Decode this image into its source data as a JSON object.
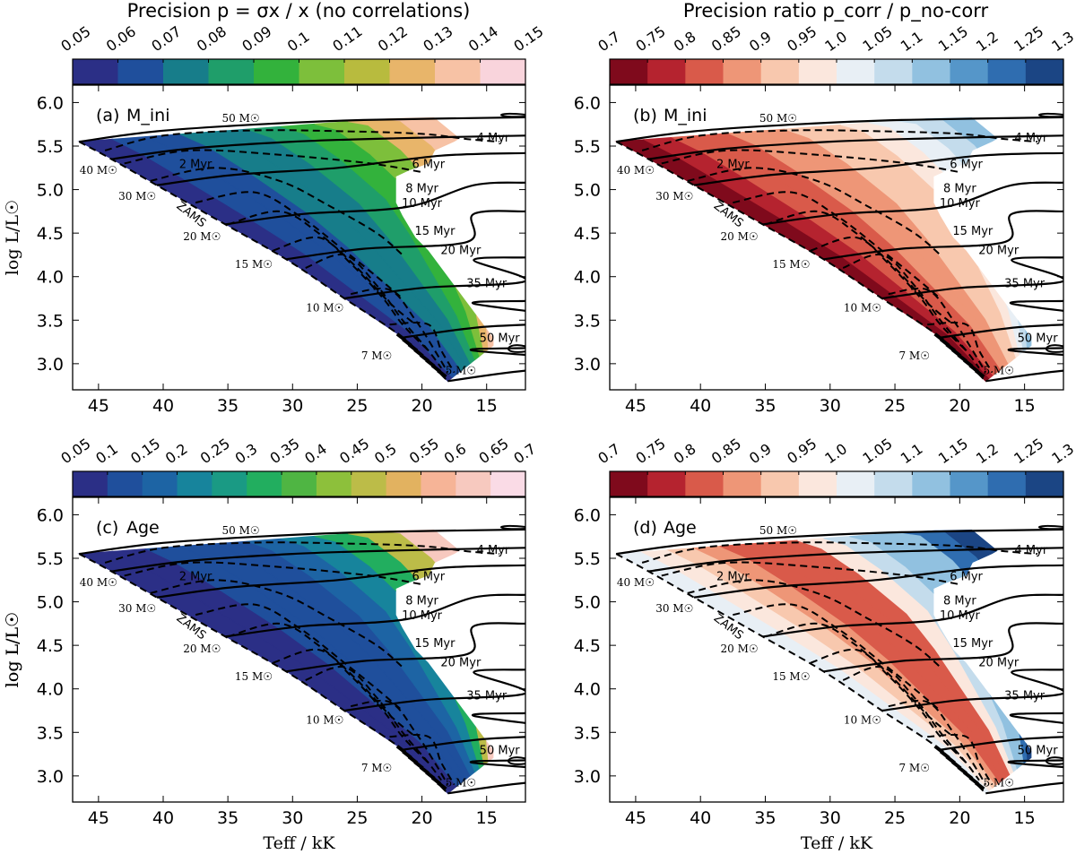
{
  "chart_data": [
    {
      "type": "heatmap",
      "panel_label": "(a)",
      "quantity": "M_ini",
      "colorbar_title": "Precision p = σx / x (no correlations)",
      "colorbar_ticks": [
        "0.05",
        "0.06",
        "0.07",
        "0.08",
        "0.09",
        "0.1",
        "0.11",
        "0.12",
        "0.13",
        "0.14",
        "0.15"
      ],
      "colorbar_colors": [
        "#2b2f86",
        "#1f4f9c",
        "#177d8a",
        "#1f9e6a",
        "#33b23c",
        "#7dbf3b",
        "#b8bb3e",
        "#e8b56a",
        "#f7c2a5",
        "#f9d4dc"
      ],
      "region_levels": [
        0.058,
        0.062,
        0.066,
        0.072,
        0.078,
        0.085,
        0.095,
        0.108,
        0.122,
        0.136
      ],
      "ylabel": "log L/L☉",
      "xlabel": "",
      "xlim": [
        47,
        12
      ],
      "ylim": [
        2.7,
        6.2
      ],
      "xticks": [
        "45",
        "40",
        "35",
        "30",
        "25",
        "20",
        "15"
      ],
      "yticks": [
        "3.0",
        "3.5",
        "4.0",
        "4.5",
        "5.0",
        "5.5",
        "6.0"
      ]
    },
    {
      "type": "heatmap",
      "panel_label": "(b)",
      "quantity": "M_ini",
      "colorbar_title": "Precision ratio p_corr / p_no-corr",
      "colorbar_ticks": [
        "0.7",
        "0.75",
        "0.8",
        "0.85",
        "0.9",
        "0.95",
        "1.0",
        "1.05",
        "1.1",
        "1.15",
        "1.2",
        "1.25",
        "1.3"
      ],
      "colorbar_colors": [
        "#7f0a1c",
        "#b5232f",
        "#d95a4a",
        "#ee9677",
        "#f8c8ae",
        "#fbe7dd",
        "#e8eff5",
        "#c4dcec",
        "#91c1e0",
        "#5596c9",
        "#2f6db0",
        "#1b4584"
      ],
      "region_levels": [
        0.74,
        0.76,
        0.8,
        0.84,
        0.86,
        0.88,
        0.9,
        0.93,
        0.96,
        1.02,
        1.06,
        1.1
      ],
      "ylabel": "",
      "xlabel": "",
      "xlim": [
        47,
        12
      ],
      "ylim": [
        2.7,
        6.2
      ],
      "xticks": [
        "45",
        "40",
        "35",
        "30",
        "25",
        "20",
        "15"
      ],
      "yticks": [
        "3.0",
        "3.5",
        "4.0",
        "4.5",
        "5.0",
        "5.5",
        "6.0"
      ]
    },
    {
      "type": "heatmap",
      "panel_label": "(c)",
      "quantity": "Age",
      "colorbar_title": "",
      "colorbar_ticks": [
        "0.05",
        "0.1",
        "0.15",
        "0.2",
        "0.25",
        "0.3",
        "0.35",
        "0.4",
        "0.45",
        "0.5",
        "0.55",
        "0.6",
        "0.65",
        "0.7"
      ],
      "colorbar_colors": [
        "#2b2f86",
        "#1f4f9c",
        "#1d64a4",
        "#17849c",
        "#1a9a84",
        "#22ae5f",
        "#4fb543",
        "#8dc03b",
        "#bcbc48",
        "#e2b260",
        "#f6b497",
        "#f7c9bf",
        "#fadbe6"
      ],
      "region_levels": [
        0.07,
        0.09,
        0.1,
        0.12,
        0.13,
        0.15,
        0.2,
        0.3,
        0.45,
        0.6
      ],
      "ylabel": "log L/L☉",
      "xlabel": "Teff / kK",
      "xlim": [
        47,
        12
      ],
      "ylim": [
        2.7,
        6.2
      ],
      "xticks": [
        "45",
        "40",
        "35",
        "30",
        "25",
        "20",
        "15"
      ],
      "yticks": [
        "3.0",
        "3.5",
        "4.0",
        "4.5",
        "5.0",
        "5.5",
        "6.0"
      ]
    },
    {
      "type": "heatmap",
      "panel_label": "(d)",
      "quantity": "Age",
      "colorbar_title": "",
      "colorbar_ticks": [
        "0.7",
        "0.75",
        "0.8",
        "0.85",
        "0.9",
        "0.95",
        "1.0",
        "1.05",
        "1.1",
        "1.15",
        "1.2",
        "1.25",
        "1.3"
      ],
      "colorbar_colors": [
        "#7f0a1c",
        "#b5232f",
        "#d95a4a",
        "#ee9677",
        "#f8c8ae",
        "#fbe7dd",
        "#e8eff5",
        "#c4dcec",
        "#91c1e0",
        "#5596c9",
        "#2f6db0",
        "#1b4584"
      ],
      "region_levels": [
        1.0,
        0.95,
        0.9,
        0.85,
        0.82,
        0.8,
        0.84,
        0.95,
        1.05,
        1.1,
        1.15,
        1.2,
        1.27
      ],
      "ylabel": "log L/L☉",
      "xlabel": "Teff / kK",
      "xlim": [
        47,
        12
      ],
      "ylim": [
        2.7,
        6.2
      ],
      "xticks": [
        "45",
        "40",
        "35",
        "30",
        "25",
        "20",
        "15"
      ],
      "yticks": [
        "3.0",
        "3.5",
        "4.0",
        "4.5",
        "5.0",
        "5.5",
        "6.0"
      ]
    }
  ],
  "overlay": {
    "zams_label": "ZAMS",
    "zams": [
      [
        46.5,
        5.55
      ],
      [
        44,
        5.35
      ],
      [
        40.5,
        5.05
      ],
      [
        35.2,
        4.6
      ],
      [
        30.5,
        4.2
      ],
      [
        26,
        3.75
      ],
      [
        21.5,
        3.3
      ],
      [
        18,
        2.8
      ]
    ],
    "tracks": [
      {
        "label": "50 M☉",
        "mass": 50,
        "start": [
          46.5,
          5.55
        ],
        "end_teff": 12,
        "end_logL": 5.83
      },
      {
        "label": "40 M☉",
        "mass": 40,
        "start": [
          44,
          5.35
        ],
        "end_teff": 12,
        "end_logL": 5.62
      },
      {
        "label": "30 M☉",
        "mass": 30,
        "start": [
          40.5,
          5.05
        ],
        "end_teff": 12,
        "end_logL": 5.42
      },
      {
        "label": "20 M☉",
        "mass": 20,
        "start": [
          35.2,
          4.6
        ],
        "end_teff": 12,
        "end_logL": 5.08
      },
      {
        "label": "15 M☉",
        "mass": 15,
        "start": [
          30.5,
          4.2
        ],
        "end_teff": 12,
        "end_logL": 4.75
      },
      {
        "label": "10 M☉",
        "mass": 10,
        "start": [
          26,
          3.75
        ],
        "end_teff": 12,
        "end_logL": 4.22
      },
      {
        "label": "7 M☉",
        "mass": 7,
        "start": [
          21.5,
          3.3
        ],
        "end_teff": 12,
        "end_logL": 3.72
      },
      {
        "label": "5 M☉",
        "mass": 5,
        "start": [
          18,
          2.8
        ],
        "end_teff": 12,
        "end_logL": 3.18
      }
    ],
    "mass_labels": [
      {
        "text": "50 M☉",
        "teff": 34,
        "logL": 5.78
      },
      {
        "text": "40 M☉",
        "teff": 45,
        "logL": 5.18
      },
      {
        "text": "30 M☉",
        "teff": 42,
        "logL": 4.88
      },
      {
        "text": "20 M☉",
        "teff": 37,
        "logL": 4.42
      },
      {
        "text": "15 M☉",
        "teff": 33,
        "logL": 4.1
      },
      {
        "text": "10 M☉",
        "teff": 27.5,
        "logL": 3.6
      },
      {
        "text": "7 M☉",
        "teff": 23.5,
        "logL": 3.05
      },
      {
        "text": "5 M☉",
        "teff": 17,
        "logL": 2.88
      }
    ],
    "isochrones": [
      {
        "label": "2 Myr",
        "teff": 37.5,
        "logL": 5.25
      },
      {
        "label": "4 Myr",
        "teff": 14.5,
        "logL": 5.55
      },
      {
        "label": "6 Myr",
        "teff": 19.5,
        "logL": 5.25
      },
      {
        "label": "8 Myr",
        "teff": 20,
        "logL": 4.97
      },
      {
        "label": "10 Myr",
        "teff": 20,
        "logL": 4.8
      },
      {
        "label": "15 Myr",
        "teff": 19,
        "logL": 4.48
      },
      {
        "label": "20 Myr",
        "teff": 17,
        "logL": 4.26
      },
      {
        "label": "35 Myr",
        "teff": 15,
        "logL": 3.88
      },
      {
        "label": "50 Myr",
        "teff": 14,
        "logL": 3.25
      }
    ],
    "isochrone_paths": [
      [
        [
          44.5,
          5.45
        ],
        [
          40,
          5.62
        ],
        [
          33,
          5.68
        ],
        [
          26,
          5.67
        ],
        [
          20,
          5.64
        ],
        [
          16.5,
          5.58
        ],
        [
          14,
          5.55
        ]
      ],
      [
        [
          43,
          5.3
        ],
        [
          38,
          5.45
        ],
        [
          31,
          5.4
        ],
        [
          24,
          5.3
        ],
        [
          20,
          5.2
        ]
      ],
      [
        [
          41,
          5.1
        ],
        [
          36,
          5.25
        ],
        [
          31,
          5.1
        ],
        [
          27,
          4.8
        ],
        [
          23.5,
          4.5
        ],
        [
          21.5,
          4.25
        ]
      ],
      [
        [
          37.5,
          4.85
        ],
        [
          33,
          4.97
        ],
        [
          29.5,
          4.7
        ],
        [
          26,
          4.3
        ],
        [
          23.5,
          4.0
        ],
        [
          21.5,
          3.75
        ]
      ],
      [
        [
          35,
          4.6
        ],
        [
          31,
          4.75
        ],
        [
          28,
          4.5
        ],
        [
          25,
          4.1
        ],
        [
          22.5,
          3.7
        ],
        [
          20.5,
          3.45
        ]
      ],
      [
        [
          31.5,
          4.3
        ],
        [
          28,
          4.45
        ],
        [
          25.5,
          4.15
        ],
        [
          23,
          3.75
        ],
        [
          21.5,
          3.45
        ],
        [
          19.5,
          3.15
        ]
      ],
      [
        [
          29,
          4.1
        ],
        [
          26,
          4.25
        ],
        [
          23.5,
          3.9
        ],
        [
          21.5,
          3.5
        ],
        [
          19.5,
          3.15
        ],
        [
          18.5,
          2.95
        ]
      ],
      [
        [
          25.5,
          3.8
        ],
        [
          22.5,
          3.85
        ],
        [
          20.5,
          3.5
        ],
        [
          19,
          3.15
        ],
        [
          18,
          2.9
        ]
      ],
      [
        [
          22.5,
          3.45
        ],
        [
          19.5,
          3.45
        ],
        [
          18.5,
          3.15
        ],
        [
          17.5,
          2.9
        ]
      ]
    ],
    "axis_labels": {
      "ylabel": "log L/L☉",
      "xlabel": "Teff/kK"
    }
  }
}
